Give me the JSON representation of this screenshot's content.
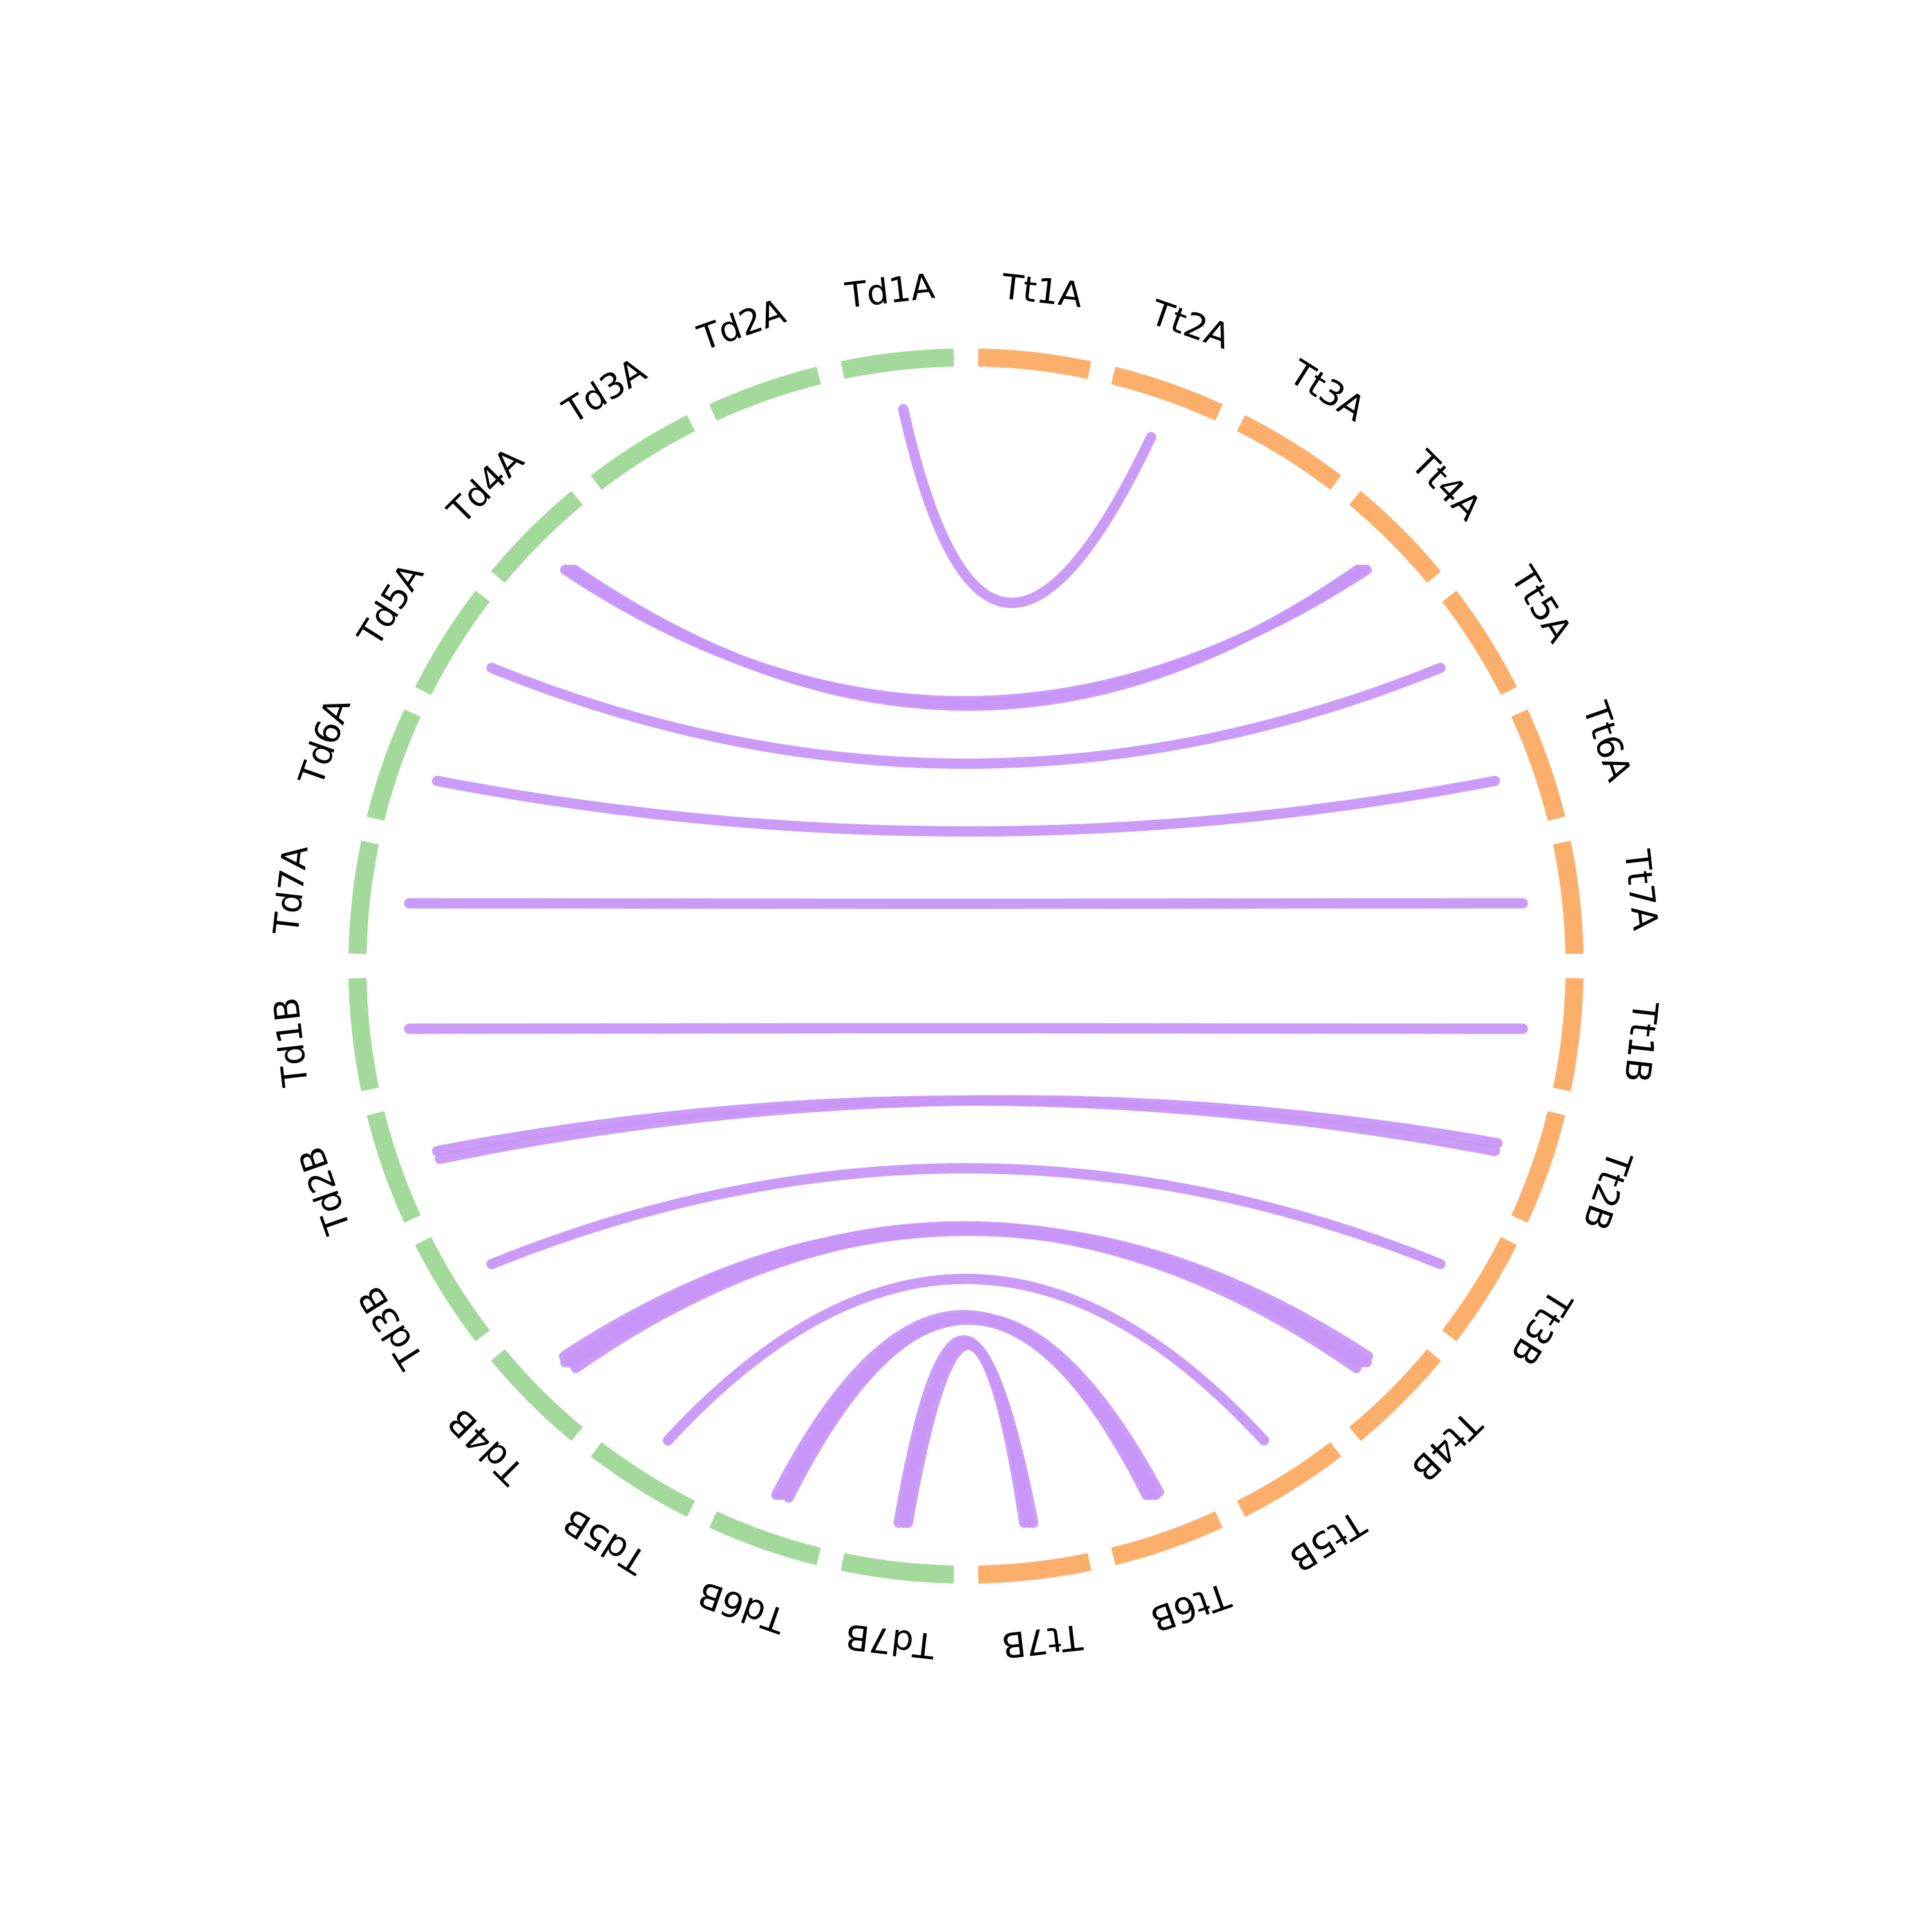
{
  "colors": {
    "group_td": "#a3d99b",
    "group_tt": "#fcae6b",
    "link": "#c896f8",
    "background": "#ffffff",
    "label": "#000000"
  },
  "segments": [
    {
      "label": "Tt1A",
      "group": "tt"
    },
    {
      "label": "Tt2A",
      "group": "tt"
    },
    {
      "label": "Tt3A",
      "group": "tt"
    },
    {
      "label": "Tt4A",
      "group": "tt"
    },
    {
      "label": "Tt5A",
      "group": "tt"
    },
    {
      "label": "Tt6A",
      "group": "tt"
    },
    {
      "label": "Tt7A",
      "group": "tt"
    },
    {
      "label": "Tt1B",
      "group": "tt"
    },
    {
      "label": "Tt2B",
      "group": "tt"
    },
    {
      "label": "Tt3B",
      "group": "tt"
    },
    {
      "label": "Tt4B",
      "group": "tt"
    },
    {
      "label": "Tt5B",
      "group": "tt"
    },
    {
      "label": "Tt6B",
      "group": "tt"
    },
    {
      "label": "Tt7B",
      "group": "tt"
    },
    {
      "label": "Td7B",
      "group": "td"
    },
    {
      "label": "Td6B",
      "group": "td"
    },
    {
      "label": "Td5B",
      "group": "td"
    },
    {
      "label": "Td4B",
      "group": "td"
    },
    {
      "label": "Td3B",
      "group": "td"
    },
    {
      "label": "Td2B",
      "group": "td"
    },
    {
      "label": "Td1B",
      "group": "td"
    },
    {
      "label": "Td7A",
      "group": "td"
    },
    {
      "label": "Td6A",
      "group": "td"
    },
    {
      "label": "Td5A",
      "group": "td"
    },
    {
      "label": "Td4A",
      "group": "td"
    },
    {
      "label": "Td3A",
      "group": "td"
    },
    {
      "label": "Td2A",
      "group": "td"
    },
    {
      "label": "Td1A",
      "group": "td"
    }
  ],
  "links": [
    {
      "from": "Td1A",
      "to": "Tt2A",
      "count": 1
    },
    {
      "from": "Td4A",
      "to": "Tt4A",
      "count": 3
    },
    {
      "from": "Td5A",
      "to": "Tt5A",
      "count": 1
    },
    {
      "from": "Td6A",
      "to": "Tt6A",
      "count": 1
    },
    {
      "from": "Td7A",
      "to": "Tt7A",
      "count": 1
    },
    {
      "from": "Td1B",
      "to": "Tt1B",
      "count": 1
    },
    {
      "from": "Td2B",
      "to": "Tt2B",
      "count": 1
    },
    {
      "from": "Td2B",
      "to": "Tt2B",
      "count": 1
    },
    {
      "from": "Td3B",
      "to": "Tt3B",
      "count": 1
    },
    {
      "from": "Td4B",
      "to": "Tt4B",
      "count": 3
    },
    {
      "from": "Td4B",
      "to": "Tt4B",
      "count": 1
    },
    {
      "from": "Td4B",
      "to": "Tt4B",
      "count": 1
    },
    {
      "from": "Td5B",
      "to": "Tt5B",
      "count": 1
    },
    {
      "from": "Td6B",
      "to": "Tt6B",
      "count": 3
    },
    {
      "from": "Td6B",
      "to": "Tt6B",
      "count": 1
    },
    {
      "from": "Td7B",
      "to": "Tt7B",
      "count": 3
    }
  ]
}
